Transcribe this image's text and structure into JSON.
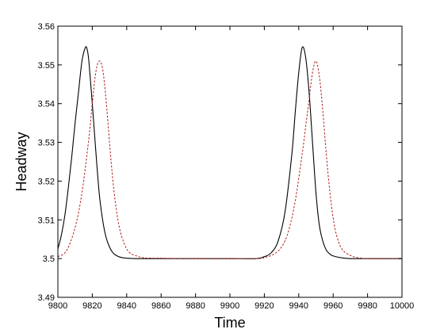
{
  "chart_data": {
    "type": "line",
    "title": "",
    "xlabel": "Time",
    "ylabel": "Headway",
    "xlim": [
      9800,
      10000
    ],
    "ylim": [
      3.49,
      3.56
    ],
    "xticks": [
      9800,
      9820,
      9840,
      9860,
      9880,
      9900,
      9920,
      9940,
      9960,
      9980,
      10000
    ],
    "xtick_labels": [
      "9800",
      "9820",
      "9840",
      "9860",
      "9880",
      "9900",
      "9920",
      "9940",
      "9960",
      "9980",
      "10000"
    ],
    "yticks": [
      3.49,
      3.5,
      3.51,
      3.52,
      3.53,
      3.54,
      3.55,
      3.56
    ],
    "ytick_labels": [
      "3.49",
      "3.5",
      "3.51",
      "3.52",
      "3.53",
      "3.54",
      "3.55",
      "3.56"
    ],
    "grid": false,
    "legend": "none",
    "series": [
      {
        "style": "solid",
        "color": "#000000",
        "x": [
          9800,
          9802,
          9804,
          9806,
          9808,
          9810,
          9812,
          9814,
          9816,
          9817,
          9818,
          9820,
          9822,
          9824,
          9826,
          9828,
          9830,
          9832,
          9834,
          9836,
          9838,
          9840,
          9845,
          9850,
          9860,
          9880,
          9900,
          9915,
          9920,
          9924,
          9928,
          9932,
          9936,
          9938,
          9940,
          9942,
          9944,
          9946,
          9948,
          9950,
          9952,
          9954,
          9956,
          9958,
          9960,
          9965,
          9970,
          9980,
          10000
        ],
        "y": [
          3.5025,
          3.506,
          3.511,
          3.518,
          3.526,
          3.535,
          3.543,
          3.551,
          3.5545,
          3.554,
          3.551,
          3.54,
          3.528,
          3.517,
          3.51,
          3.5055,
          3.503,
          3.5015,
          3.5008,
          3.5004,
          3.5002,
          3.5001,
          3.5,
          3.5,
          3.5,
          3.5,
          3.5,
          3.5,
          3.5005,
          3.5015,
          3.5045,
          3.512,
          3.527,
          3.538,
          3.548,
          3.5545,
          3.552,
          3.543,
          3.53,
          3.517,
          3.5085,
          3.5045,
          3.5022,
          3.5012,
          3.5007,
          3.5002,
          3.5,
          3.5,
          3.5
        ]
      },
      {
        "style": "dashed",
        "color": "#b01c1c",
        "x": [
          9800,
          9805,
          9810,
          9814,
          9818,
          9820,
          9822,
          9824,
          9826,
          9828,
          9830,
          9832,
          9834,
          9836,
          9838,
          9840,
          9842,
          9845,
          9850,
          9860,
          9870,
          9875,
          9915,
          9920,
          9925,
          9930,
          9934,
          9938,
          9942,
          9944,
          9946,
          9948,
          9950,
          9952,
          9954,
          9956,
          9958,
          9960,
          9962,
          9965,
          9970,
          9975,
          9980,
          10000
        ],
        "y": [
          3.5005,
          3.502,
          3.508,
          3.517,
          3.531,
          3.54,
          3.548,
          3.551,
          3.549,
          3.541,
          3.53,
          3.52,
          3.5125,
          3.5075,
          3.5045,
          3.5025,
          3.5014,
          3.5008,
          3.5002,
          3.5001,
          3.5,
          3.5,
          3.5,
          3.5003,
          3.501,
          3.503,
          3.507,
          3.515,
          3.527,
          3.534,
          3.541,
          3.548,
          3.551,
          3.547,
          3.538,
          3.527,
          3.5175,
          3.5105,
          3.506,
          3.5025,
          3.5008,
          3.5002,
          3.5,
          3.5
        ]
      }
    ]
  }
}
